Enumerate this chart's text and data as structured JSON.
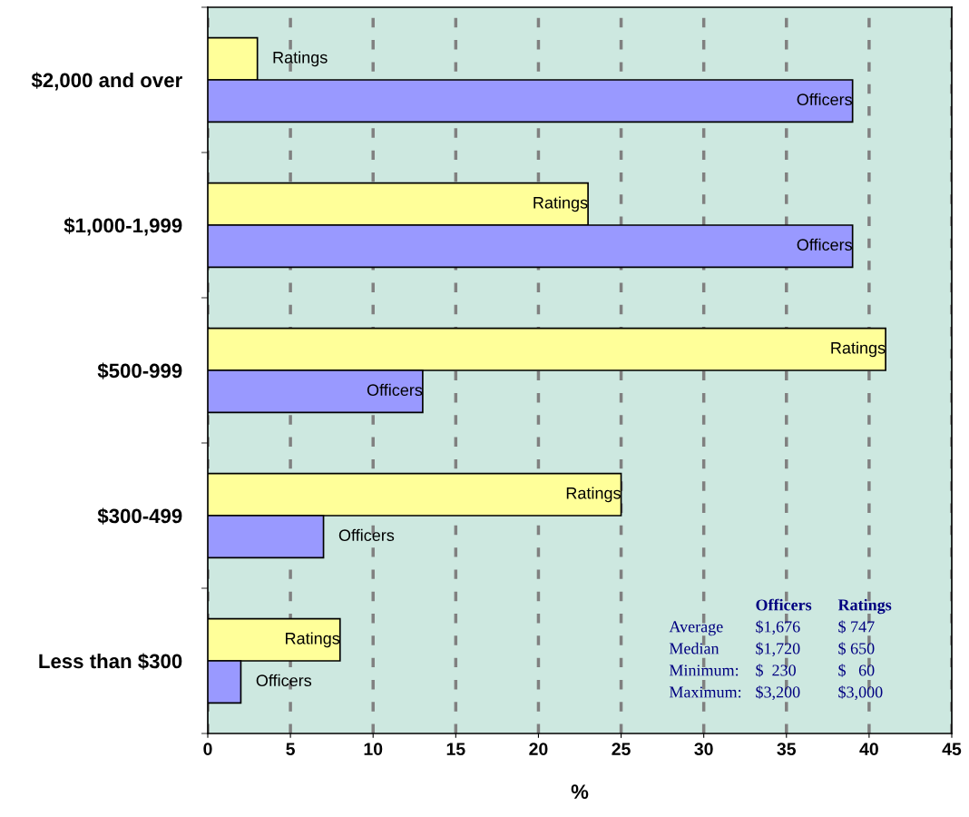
{
  "chart_data": {
    "type": "bar",
    "orientation": "horizontal",
    "xlabel": "%",
    "categories": [
      "$2,000 and over",
      "$1,000-1,999",
      "$500-999",
      "$300-499",
      "Less than $300"
    ],
    "series": [
      {
        "name": "Ratings",
        "color": "#ffff99",
        "values": [
          3,
          23,
          41,
          25,
          8
        ]
      },
      {
        "name": "Officers",
        "color": "#9999ff",
        "values": [
          39,
          39,
          13,
          7,
          2
        ]
      }
    ],
    "xlim": [
      0,
      45
    ],
    "xticks": [
      0,
      5,
      10,
      15,
      20,
      25,
      30,
      35,
      40,
      45
    ],
    "grid": "x",
    "legend": false,
    "annotations": [
      "Officers",
      "Ratings",
      "Average",
      "$1,676",
      "$ 747",
      "Median",
      "$1,720",
      "$ 650",
      "Minimum:",
      "$  230",
      "$   60",
      "Maximum:",
      "$3,200",
      "$3,000"
    ]
  }
}
